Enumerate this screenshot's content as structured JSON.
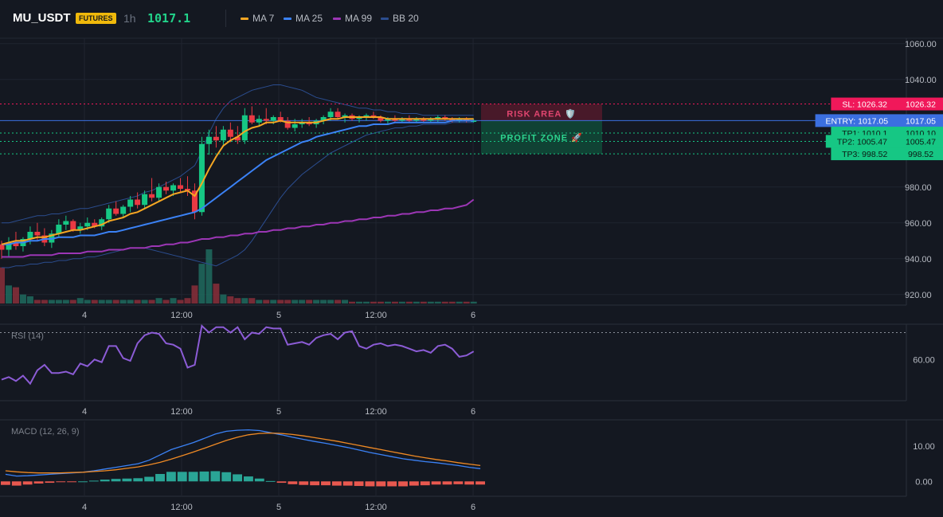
{
  "header": {
    "symbol": "MU_USDT",
    "badge": "FUTURES",
    "timeframe": "1h",
    "last_price": "1017.1"
  },
  "legend": [
    {
      "label": "MA 7",
      "color": "#f5a623"
    },
    {
      "label": "MA 25",
      "color": "#3b82f6"
    },
    {
      "label": "MA 99",
      "color": "#9c36b5"
    },
    {
      "label": "BB 20",
      "color": "#2b4d8f"
    }
  ],
  "zones": {
    "risk_label": "RISK AREA 🛡️",
    "profit_label": "PROFIT ZONE 🚀"
  },
  "levels": [
    {
      "label": "SL: 1026.32",
      "value": 1026.32,
      "axis": "1026.32",
      "color": "#f0185a",
      "dash": "2,3"
    },
    {
      "label": "ENTRY: 1017.05",
      "value": 1017.05,
      "axis": "1017.05",
      "color": "#3b6fe0",
      "dash": ""
    },
    {
      "label": "TP1: 1010.1",
      "value": 1010.1,
      "axis": "1010.10",
      "color": "#16c784",
      "dash": "2,3"
    },
    {
      "label": "TP2: 1005.47",
      "value": 1005.47,
      "axis": "1005.47",
      "color": "#16c784",
      "dash": "2,3"
    },
    {
      "label": "TP3: 998.52",
      "value": 998.52,
      "axis": "998.52",
      "color": "#16c784",
      "dash": "2,3"
    }
  ],
  "chart_data": [
    {
      "type": "candlestick",
      "x_ticks": [
        "4",
        "12:00",
        "5",
        "12:00",
        "6"
      ],
      "y_ticks": [
        "1060.00",
        "1040.00",
        "980.00",
        "960.00",
        "940.00",
        "920.00"
      ],
      "ylim": [
        915,
        1063
      ],
      "candles": [
        [
          948,
          950,
          940,
          945
        ],
        [
          945,
          952,
          941,
          949
        ],
        [
          949,
          955,
          945,
          947
        ],
        [
          947,
          952,
          944,
          951
        ],
        [
          951,
          958,
          948,
          955
        ],
        [
          955,
          960,
          950,
          953
        ],
        [
          953,
          957,
          947,
          949
        ],
        [
          949,
          956,
          946,
          954
        ],
        [
          954,
          962,
          952,
          959
        ],
        [
          959,
          964,
          956,
          961
        ],
        [
          961,
          962,
          955,
          956
        ],
        [
          956,
          960,
          954,
          958
        ],
        [
          958,
          963,
          956,
          960
        ],
        [
          960,
          962,
          957,
          958
        ],
        [
          958,
          963,
          956,
          962
        ],
        [
          962,
          970,
          960,
          968
        ],
        [
          968,
          972,
          964,
          965
        ],
        [
          965,
          970,
          963,
          969
        ],
        [
          969,
          975,
          966,
          973
        ],
        [
          973,
          977,
          968,
          970
        ],
        [
          970,
          978,
          968,
          976
        ],
        [
          976,
          985,
          972,
          974
        ],
        [
          974,
          982,
          972,
          980
        ],
        [
          980,
          983,
          976,
          978
        ],
        [
          978,
          982,
          975,
          981
        ],
        [
          981,
          985,
          977,
          979
        ],
        [
          979,
          986,
          975,
          978
        ],
        [
          978,
          982,
          962,
          966
        ],
        [
          966,
          1008,
          964,
          1004
        ],
        [
          1004,
          1012,
          998,
          1008
        ],
        [
          1008,
          1014,
          1002,
          1006
        ],
        [
          1006,
          1014,
          1003,
          1012
        ],
        [
          1012,
          1016,
          1005,
          1008
        ],
        [
          1008,
          1014,
          1004,
          1006
        ],
        [
          1006,
          1024,
          1004,
          1020
        ],
        [
          1020,
          1025,
          1015,
          1016
        ],
        [
          1016,
          1020,
          1014,
          1018
        ],
        [
          1018,
          1024,
          1015,
          1017
        ],
        [
          1017,
          1020,
          1015,
          1019
        ],
        [
          1019,
          1022,
          1016,
          1017
        ],
        [
          1017,
          1019,
          1012,
          1013
        ],
        [
          1013,
          1018,
          1011,
          1015
        ],
        [
          1015,
          1018,
          1013,
          1016
        ],
        [
          1016,
          1019,
          1014,
          1015
        ],
        [
          1015,
          1018,
          1013,
          1017
        ],
        [
          1017,
          1020,
          1015,
          1019
        ],
        [
          1019,
          1024,
          1017,
          1022
        ],
        [
          1022,
          1024,
          1018,
          1019
        ],
        [
          1019,
          1021,
          1016,
          1020
        ],
        [
          1020,
          1021,
          1017,
          1018
        ],
        [
          1018,
          1020,
          1016,
          1019
        ],
        [
          1019,
          1021,
          1017,
          1020
        ],
        [
          1020,
          1022,
          1018,
          1019
        ],
        [
          1019,
          1020,
          1016,
          1017
        ],
        [
          1017,
          1019,
          1015,
          1018
        ],
        [
          1018,
          1020,
          1016,
          1017
        ],
        [
          1017,
          1019,
          1016,
          1018
        ],
        [
          1018,
          1020,
          1016,
          1017
        ],
        [
          1017,
          1019,
          1016,
          1018
        ],
        [
          1018,
          1019,
          1016,
          1017
        ],
        [
          1017,
          1019,
          1016,
          1018
        ],
        [
          1018,
          1020,
          1016,
          1019
        ],
        [
          1019,
          1020,
          1017,
          1018
        ],
        [
          1018,
          1019,
          1016,
          1017
        ],
        [
          1017,
          1019,
          1016,
          1018
        ],
        [
          1018,
          1019,
          1016,
          1017
        ],
        [
          1017,
          1018,
          1016,
          1017
        ]
      ],
      "volume": [
        20,
        10,
        9,
        5,
        4,
        2,
        2,
        2,
        2,
        2,
        2,
        3,
        2,
        2,
        2,
        2,
        2,
        2,
        2,
        2,
        2,
        2,
        3,
        2,
        3,
        2,
        3,
        10,
        22,
        30,
        11,
        5,
        4,
        3,
        3,
        3,
        2,
        2,
        2,
        2,
        2,
        2,
        2,
        2,
        2,
        2,
        2,
        2,
        2,
        1,
        1,
        1,
        1,
        1,
        1,
        1,
        1,
        1,
        1,
        1,
        1,
        1,
        1,
        1,
        1,
        1,
        1
      ],
      "ma7": [
        948,
        949,
        950,
        950,
        951,
        952,
        952,
        953,
        954,
        955,
        956,
        956,
        957,
        958,
        959,
        961,
        962,
        963,
        965,
        966,
        968,
        970,
        972,
        974,
        976,
        977,
        978,
        975,
        982,
        990,
        997,
        1003,
        1006,
        1008,
        1011,
        1013,
        1014,
        1016,
        1016,
        1017,
        1016,
        1016,
        1016,
        1016,
        1016,
        1017,
        1018,
        1018,
        1019,
        1019,
        1019,
        1019,
        1019,
        1019,
        1018,
        1018,
        1018,
        1018,
        1018,
        1018,
        1018,
        1018,
        1018,
        1018,
        1018,
        1018,
        1018
      ],
      "ma25": [
        948,
        948,
        949,
        949,
        950,
        950,
        951,
        951,
        952,
        952,
        952,
        953,
        953,
        953,
        954,
        955,
        955,
        956,
        957,
        958,
        959,
        960,
        961,
        962,
        963,
        964,
        965,
        966,
        968,
        971,
        974,
        977,
        980,
        983,
        986,
        989,
        992,
        995,
        997,
        999,
        1001,
        1003,
        1005,
        1006,
        1008,
        1009,
        1010,
        1011,
        1012,
        1013,
        1014,
        1014,
        1015,
        1015,
        1015,
        1016,
        1016,
        1016,
        1016,
        1016,
        1016,
        1016,
        1016,
        1017,
        1017,
        1017,
        1017
      ],
      "ma99": [
        941,
        941,
        941,
        941,
        942,
        942,
        942,
        942,
        943,
        943,
        943,
        943,
        944,
        944,
        944,
        945,
        945,
        945,
        946,
        946,
        946,
        947,
        947,
        948,
        948,
        949,
        949,
        950,
        951,
        951,
        952,
        952,
        953,
        953,
        954,
        954,
        955,
        955,
        956,
        956,
        957,
        957,
        958,
        958,
        959,
        959,
        960,
        960,
        961,
        961,
        962,
        962,
        963,
        963,
        964,
        964,
        965,
        965,
        966,
        966,
        967,
        967,
        968,
        968,
        969,
        970,
        973
      ],
      "bb_upper": [
        960,
        960,
        961,
        962,
        963,
        964,
        964,
        965,
        965,
        966,
        967,
        968,
        968,
        969,
        970,
        971,
        972,
        973,
        974,
        975,
        977,
        978,
        980,
        982,
        984,
        986,
        989,
        992,
        1000,
        1010,
        1018,
        1024,
        1028,
        1030,
        1032,
        1034,
        1035,
        1036,
        1037,
        1037,
        1036,
        1035,
        1034,
        1032,
        1030,
        1029,
        1028,
        1027,
        1026,
        1025,
        1024,
        1024,
        1023,
        1023,
        1022,
        1022,
        1021,
        1021,
        1021,
        1020,
        1020,
        1020,
        1020,
        1020,
        1020,
        1020,
        1020
      ],
      "bb_lower": [
        935,
        935,
        936,
        936,
        937,
        937,
        938,
        938,
        939,
        939,
        940,
        940,
        941,
        941,
        942,
        943,
        944,
        945,
        946,
        946,
        946,
        945,
        944,
        943,
        942,
        941,
        940,
        939,
        938,
        937,
        936,
        938,
        940,
        942,
        945,
        950,
        956,
        962,
        968,
        974,
        979,
        983,
        987,
        990,
        993,
        996,
        999,
        1001,
        1003,
        1005,
        1007,
        1009,
        1010,
        1011,
        1012,
        1013,
        1013,
        1014,
        1014,
        1015,
        1015,
        1015,
        1015,
        1016,
        1016,
        1016,
        1016
      ]
    },
    {
      "type": "line",
      "title": "RSI (14)",
      "y_ticks": [
        "60.00"
      ],
      "ylim": [
        30,
        85
      ],
      "values": [
        45,
        47,
        44,
        48,
        42,
        52,
        56,
        50,
        50,
        51,
        49,
        57,
        55,
        60,
        58,
        70,
        70,
        61,
        59,
        72,
        78,
        80,
        79,
        72,
        71,
        68,
        54,
        56,
        85,
        80,
        84,
        84,
        80,
        84,
        75,
        80,
        79,
        84,
        83,
        83,
        71,
        72,
        73,
        71,
        76,
        78,
        79,
        75,
        80,
        81,
        70,
        68,
        71,
        72,
        70,
        71,
        70,
        68,
        66,
        67,
        65,
        70,
        71,
        68,
        62,
        63,
        66
      ],
      "threshold": 80
    },
    {
      "type": "bar+line",
      "title": "MACD (12, 26, 9)",
      "y_ticks": [
        "10.00",
        "0.00"
      ],
      "ylim": [
        -4,
        17
      ],
      "macd": [
        2,
        1.5,
        1.6,
        1.8,
        2,
        2.2,
        2.4,
        2.6,
        3,
        3.5,
        4,
        4.5,
        5,
        6,
        7.5,
        9,
        10,
        11,
        12.2,
        13.4,
        14.2,
        14.5,
        14.6,
        14.4,
        13.8,
        13.2,
        12.5,
        11.9,
        11.3,
        10.8,
        10.2,
        9.6,
        8.9,
        8.2,
        7.6,
        7,
        6.4,
        6,
        5.6,
        5.3,
        4.9,
        4.5,
        4,
        3.6
      ],
      "signal": [
        3,
        2.7,
        2.5,
        2.4,
        2.4,
        2.4,
        2.5,
        2.6,
        2.8,
        3,
        3.3,
        3.7,
        4.1,
        4.7,
        5.4,
        6.3,
        7.3,
        8.3,
        9.4,
        10.5,
        11.6,
        12.5,
        13.2,
        13.6,
        13.7,
        13.6,
        13.3,
        12.9,
        12.4,
        11.9,
        11.4,
        10.8,
        10.2,
        9.6,
        9,
        8.4,
        7.8,
        7.2,
        6.7,
        6.2,
        5.8,
        5.3,
        4.9,
        4.5
      ],
      "hist": [
        -1,
        -1.2,
        -0.9,
        -0.6,
        -0.4,
        -0.2,
        -0.1,
        0,
        0.2,
        0.5,
        0.7,
        0.8,
        0.9,
        1.3,
        2.1,
        2.7,
        2.7,
        2.7,
        2.8,
        2.9,
        2.6,
        2,
        1.4,
        0.8,
        0.1,
        -0.4,
        -0.8,
        -1,
        -1.1,
        -1.1,
        -1.2,
        -1.2,
        -1.3,
        -1.4,
        -1.4,
        -1.4,
        -1.4,
        -1.2,
        -1.1,
        -0.9,
        -0.9,
        -0.8,
        -0.9,
        -0.9
      ]
    }
  ]
}
